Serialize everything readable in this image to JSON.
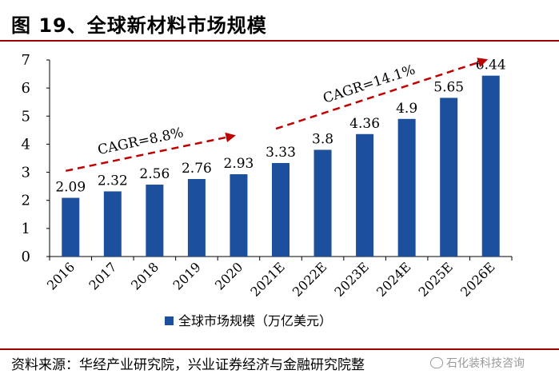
{
  "figure": {
    "title": "图 19、全球新材料市场规模",
    "source": "资料来源：华经产业研究院，兴业证券经济与金融研究院整",
    "watermark": "石化装科技咨询"
  },
  "colors": {
    "bar": "#1c4f9c",
    "accent": "#c00000",
    "rule": "#a00000",
    "axis": "#000000"
  },
  "chart_data": {
    "type": "bar",
    "categories": [
      "2016",
      "2017",
      "2018",
      "2019",
      "2020",
      "2021E",
      "2022E",
      "2023E",
      "2024E",
      "2025E",
      "2026E"
    ],
    "series": [
      {
        "name": "全球市场规模（万亿美元）",
        "values": [
          2.09,
          2.32,
          2.56,
          2.76,
          2.93,
          3.33,
          3.8,
          4.36,
          4.9,
          5.65,
          6.44
        ]
      }
    ],
    "data_labels": [
      "2.09",
      "2.32",
      "2.56",
      "2.76",
      "2.93",
      "3.33",
      "3.8",
      "4.36",
      "4.9",
      "5.65",
      "6.44"
    ],
    "ylim": [
      0,
      7
    ],
    "yticks": [
      0,
      1,
      2,
      3,
      4,
      5,
      6,
      7
    ],
    "xlabel": "",
    "ylabel": "",
    "grid": false,
    "legend": "bottom-center",
    "annotations": [
      {
        "text": "CAGR=8.8%",
        "from_category": "2016",
        "to_category": "2020",
        "from_value": 3.05,
        "to_value": 4.3
      },
      {
        "text": "CAGR=14.1%",
        "from_category": "2021E",
        "to_category": "2026E",
        "from_value": 4.55,
        "to_value": 7.0
      }
    ]
  }
}
